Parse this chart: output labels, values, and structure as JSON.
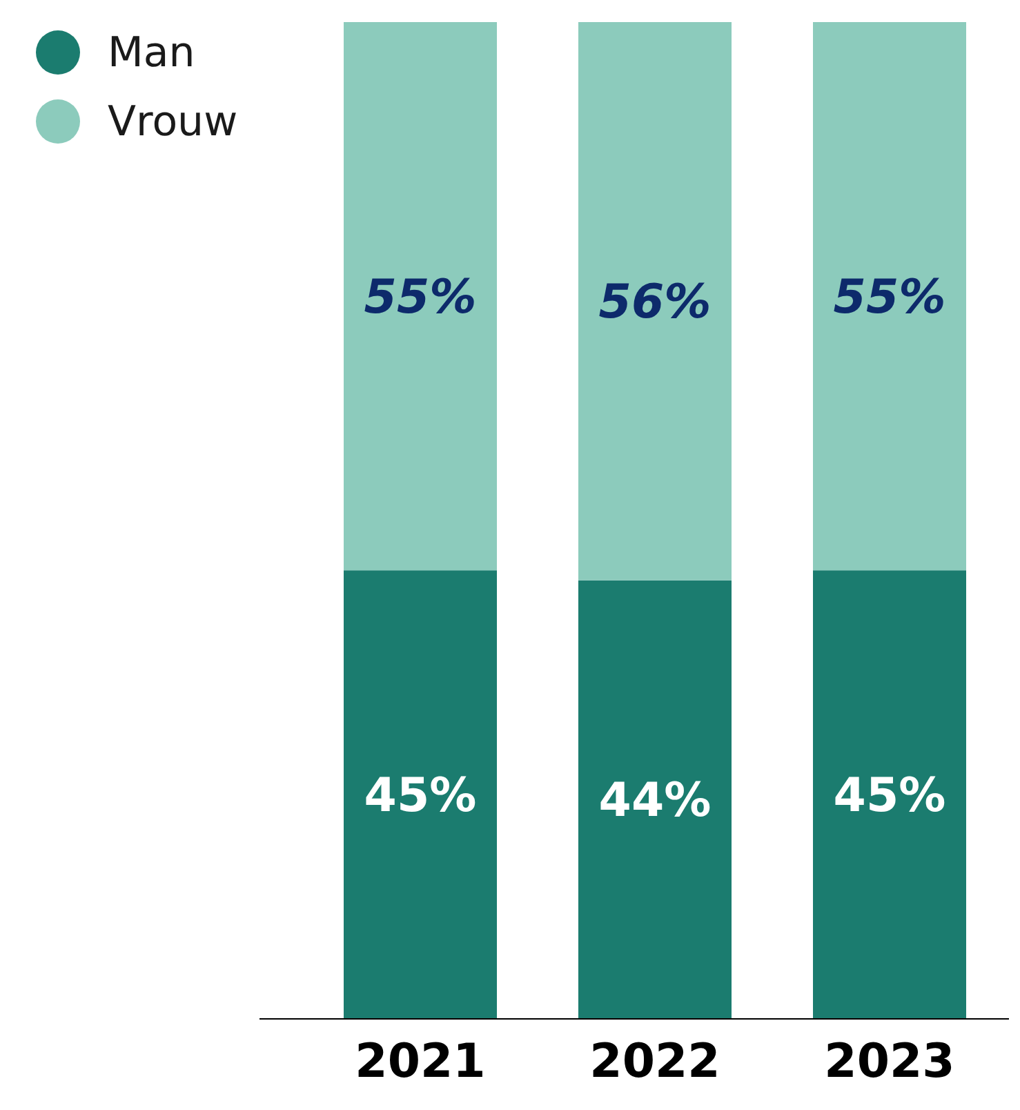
{
  "chart_data": {
    "type": "bar",
    "stacked": true,
    "categories": [
      "2021",
      "2022",
      "2023"
    ],
    "series": [
      {
        "name": "Man",
        "color": "#1b7c6f",
        "values": [
          45,
          44,
          45
        ],
        "value_labels": [
          "45%",
          "44%",
          "45%"
        ]
      },
      {
        "name": "Vrouw",
        "color": "#8ccbbc",
        "values": [
          55,
          56,
          55
        ],
        "value_labels": [
          "55%",
          "56%",
          "55%"
        ]
      }
    ],
    "legend": "top left"
  }
}
